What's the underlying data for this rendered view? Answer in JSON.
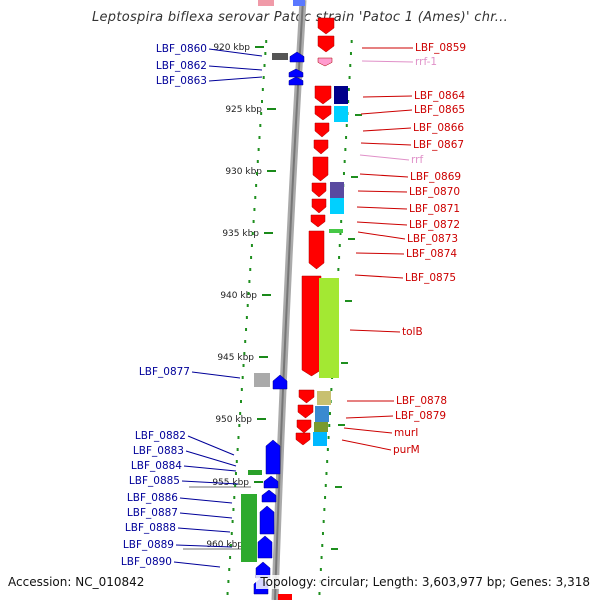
{
  "title": "Leptospira biflexa serovar Patoc strain 'Patoc 1 (Ames)' chr...",
  "footer": {
    "accession": "Accession: NC_010842",
    "summary": "Topology: circular; Length: 3,603,977 bp; Genes: 3,318"
  },
  "scale_ticks": [
    "920 kbp",
    "925 kbp",
    "930 kbp",
    "935 kbp",
    "940 kbp",
    "945 kbp",
    "950 kbp",
    "955 kbp",
    "960 kbp"
  ],
  "colors": {
    "forward_cds": "#ff0000",
    "reverse_cds": "#0000ff",
    "rna": "#ff9ccf",
    "backbone": "#999999",
    "tick_mark": "#1a8a1a",
    "right_label": "#cc0000",
    "left_label": "#000099"
  },
  "left_labels": [
    "LBF_0860",
    "LBF_0862",
    "LBF_0863",
    "LBF_0877",
    "LBF_0882",
    "LBF_0883",
    "LBF_0884",
    "LBF_0885",
    "LBF_0886",
    "LBF_0887",
    "LBF_0888",
    "LBF_0889",
    "LBF_0890"
  ],
  "right_labels": [
    "LBF_0859",
    "rrf-1",
    "LBF_0864",
    "LBF_0865",
    "LBF_0866",
    "LBF_0867",
    "rrf",
    "LBF_0869",
    "LBF_0870",
    "LBF_0871",
    "LBF_0872",
    "LBF_0873",
    "LBF_0874",
    "LBF_0875",
    "tolB",
    "LBF_0878",
    "LBF_0879",
    "murI",
    "purM"
  ]
}
